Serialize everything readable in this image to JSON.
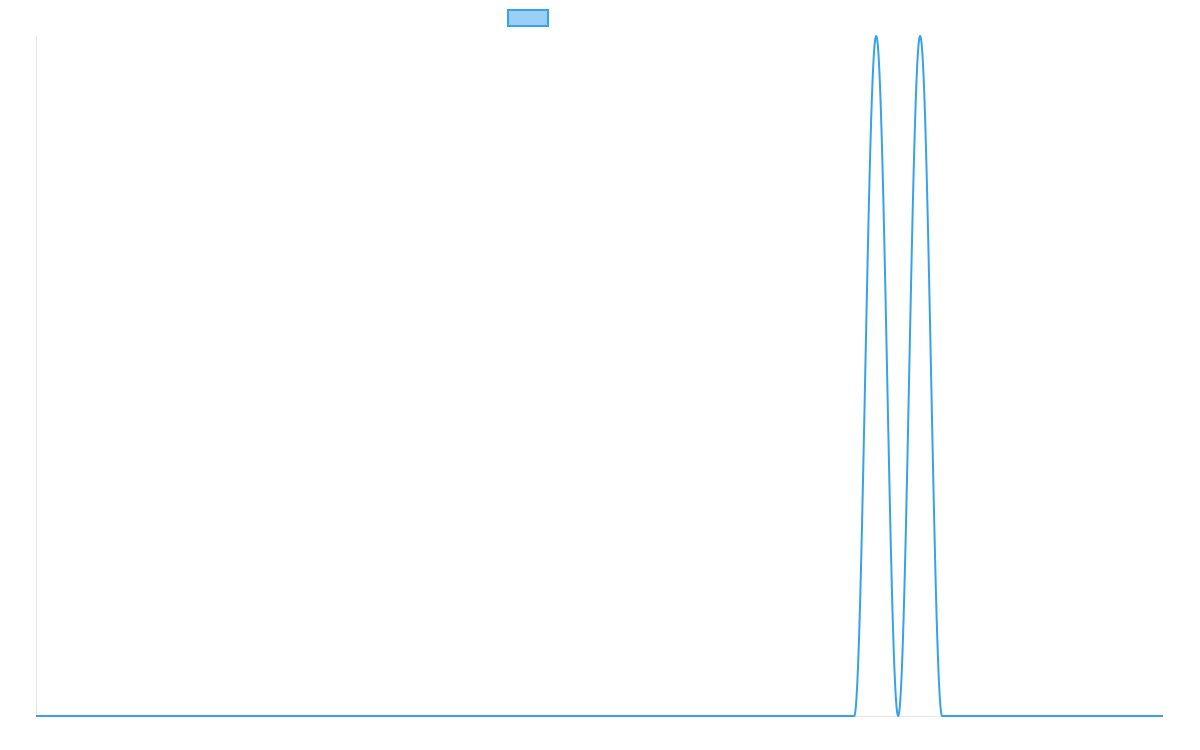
{
  "chart_data": {
    "type": "line",
    "title": "",
    "xlabel": "",
    "ylabel": "",
    "grid": false,
    "legend": "top-center",
    "series": [
      {
        "color": "#36a2eb",
        "fill": "#9ad0f5",
        "points": [
          [
            0,
            0
          ],
          [
            0.726,
            0
          ],
          [
            0.7455,
            1
          ],
          [
            0.765,
            0
          ],
          [
            0.7845,
            1
          ],
          [
            0.804,
            0
          ],
          [
            1,
            0
          ]
        ]
      }
    ]
  }
}
